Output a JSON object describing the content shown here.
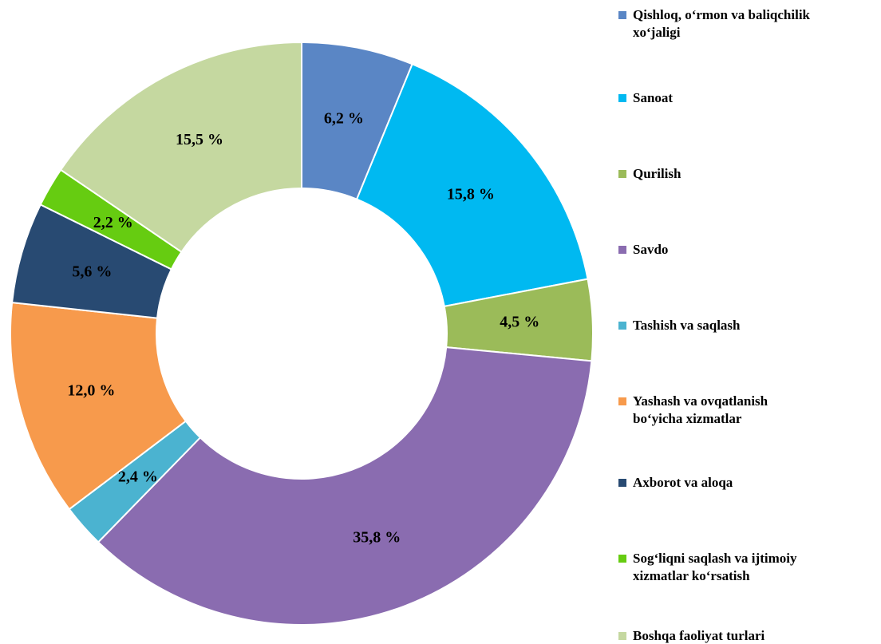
{
  "chart_data": {
    "type": "donut",
    "categories": [
      "Qishloq, o‘rmon va baliqchilik\nxo‘jaligi",
      "Sanoat",
      "Qurilish",
      "Savdo",
      "Tashish va saqlash",
      "Yashash va ovqatlanish\nbo‘yicha xizmatlar",
      "Axborot va aloqa",
      "Sog‘liqni saqlash va ijtimoiy\nxizmatlar ko‘rsatish",
      "Boshqa faoliyat turlari"
    ],
    "values": [
      6.2,
      15.8,
      4.5,
      35.8,
      2.4,
      12.0,
      5.6,
      2.2,
      15.5
    ],
    "value_labels": [
      "6,2 %",
      "15,8 %",
      "4,5 %",
      "35,8 %",
      "2,4 %",
      "12,0 %",
      "5,6 %",
      "2,2 %",
      "15,5 %"
    ],
    "colors": [
      "#5a86c5",
      "#00b9f1",
      "#9bbb59",
      "#8a6cb0",
      "#4bb3d0",
      "#f79a4c",
      "#284a72",
      "#66cc11",
      "#c5d8a0"
    ],
    "legend": "right"
  }
}
